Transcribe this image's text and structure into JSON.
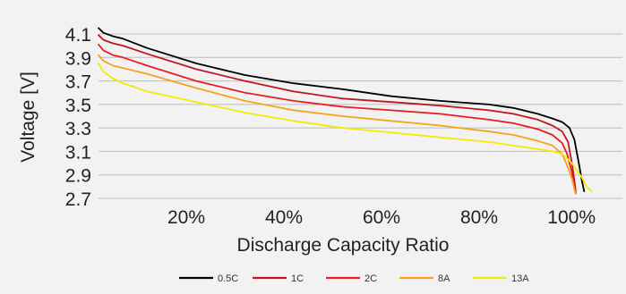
{
  "chart_data": {
    "type": "line",
    "xlabel": "Discharge Capacity Ratio",
    "ylabel": "Voltage [V]",
    "xlim": [
      0,
      1.0
    ],
    "ylim": [
      2.7,
      4.1
    ],
    "x_tick_labels": [
      {
        "value": 0.2,
        "label": "20%"
      },
      {
        "value": 0.4,
        "label": "40%"
      },
      {
        "value": 0.6,
        "label": "60%"
      },
      {
        "value": 0.8,
        "label": "80%"
      },
      {
        "value": 1.0,
        "label": "100%"
      }
    ],
    "y_tick_labels": [
      {
        "value": 4.1,
        "label": "4.1"
      },
      {
        "value": 3.9,
        "label": "3.9"
      },
      {
        "value": 3.7,
        "label": "3.7"
      },
      {
        "value": 3.5,
        "label": "3.5"
      },
      {
        "value": 3.3,
        "label": "3.3"
      },
      {
        "value": 3.1,
        "label": "3.1"
      },
      {
        "value": 2.9,
        "label": "2.9"
      },
      {
        "value": 2.7,
        "label": "2.7"
      }
    ],
    "grid": true,
    "legend_position": "bottom",
    "series": [
      {
        "name": "0.5C",
        "color": "#000000",
        "points": [
          [
            0,
            4.15
          ],
          [
            0.01,
            4.11
          ],
          [
            0.03,
            4.08
          ],
          [
            0.05,
            4.06
          ],
          [
            0.1,
            3.98
          ],
          [
            0.2,
            3.85
          ],
          [
            0.3,
            3.75
          ],
          [
            0.4,
            3.68
          ],
          [
            0.5,
            3.63
          ],
          [
            0.6,
            3.57
          ],
          [
            0.7,
            3.53
          ],
          [
            0.8,
            3.5
          ],
          [
            0.85,
            3.47
          ],
          [
            0.9,
            3.42
          ],
          [
            0.93,
            3.38
          ],
          [
            0.95,
            3.35
          ],
          [
            0.965,
            3.3
          ],
          [
            0.975,
            3.2
          ],
          [
            0.985,
            2.98
          ],
          [
            0.99,
            2.86
          ],
          [
            0.995,
            2.76
          ]
        ]
      },
      {
        "name": "1C",
        "color": "#c0171c",
        "points": [
          [
            0,
            4.09
          ],
          [
            0.01,
            4.05
          ],
          [
            0.03,
            4.02
          ],
          [
            0.05,
            4.0
          ],
          [
            0.1,
            3.93
          ],
          [
            0.2,
            3.8
          ],
          [
            0.3,
            3.7
          ],
          [
            0.4,
            3.61
          ],
          [
            0.5,
            3.55
          ],
          [
            0.6,
            3.52
          ],
          [
            0.7,
            3.49
          ],
          [
            0.8,
            3.45
          ],
          [
            0.85,
            3.42
          ],
          [
            0.9,
            3.37
          ],
          [
            0.93,
            3.32
          ],
          [
            0.95,
            3.27
          ],
          [
            0.962,
            3.18
          ],
          [
            0.97,
            3.0
          ],
          [
            0.975,
            2.85
          ],
          [
            0.978,
            2.75
          ]
        ]
      },
      {
        "name": "2C",
        "color": "#ed1c24",
        "points": [
          [
            0,
            4.01
          ],
          [
            0.01,
            3.96
          ],
          [
            0.03,
            3.92
          ],
          [
            0.05,
            3.9
          ],
          [
            0.1,
            3.83
          ],
          [
            0.2,
            3.7
          ],
          [
            0.3,
            3.6
          ],
          [
            0.4,
            3.53
          ],
          [
            0.5,
            3.48
          ],
          [
            0.6,
            3.45
          ],
          [
            0.7,
            3.42
          ],
          [
            0.8,
            3.37
          ],
          [
            0.85,
            3.34
          ],
          [
            0.9,
            3.29
          ],
          [
            0.93,
            3.24
          ],
          [
            0.95,
            3.17
          ],
          [
            0.96,
            3.08
          ],
          [
            0.97,
            2.92
          ],
          [
            0.975,
            2.78
          ],
          [
            0.978,
            2.74
          ]
        ]
      },
      {
        "name": "8A",
        "color": "#f7a21b",
        "points": [
          [
            0,
            3.92
          ],
          [
            0.01,
            3.87
          ],
          [
            0.03,
            3.83
          ],
          [
            0.05,
            3.81
          ],
          [
            0.1,
            3.76
          ],
          [
            0.2,
            3.64
          ],
          [
            0.3,
            3.53
          ],
          [
            0.4,
            3.45
          ],
          [
            0.5,
            3.4
          ],
          [
            0.6,
            3.36
          ],
          [
            0.7,
            3.32
          ],
          [
            0.8,
            3.27
          ],
          [
            0.85,
            3.24
          ],
          [
            0.9,
            3.19
          ],
          [
            0.93,
            3.15
          ],
          [
            0.95,
            3.08
          ],
          [
            0.96,
            2.98
          ],
          [
            0.97,
            2.87
          ],
          [
            0.975,
            2.78
          ],
          [
            0.978,
            2.74
          ]
        ]
      },
      {
        "name": "13A",
        "color": "#f2ec00",
        "points": [
          [
            0,
            3.85
          ],
          [
            0.01,
            3.78
          ],
          [
            0.03,
            3.72
          ],
          [
            0.05,
            3.68
          ],
          [
            0.1,
            3.61
          ],
          [
            0.2,
            3.52
          ],
          [
            0.3,
            3.43
          ],
          [
            0.4,
            3.36
          ],
          [
            0.5,
            3.3
          ],
          [
            0.6,
            3.26
          ],
          [
            0.7,
            3.22
          ],
          [
            0.8,
            3.18
          ],
          [
            0.85,
            3.15
          ],
          [
            0.9,
            3.12
          ],
          [
            0.93,
            3.1
          ],
          [
            0.95,
            3.08
          ],
          [
            0.97,
            3.0
          ],
          [
            0.99,
            2.88
          ],
          [
            1.0,
            2.8
          ],
          [
            1.01,
            2.76
          ]
        ]
      }
    ]
  }
}
